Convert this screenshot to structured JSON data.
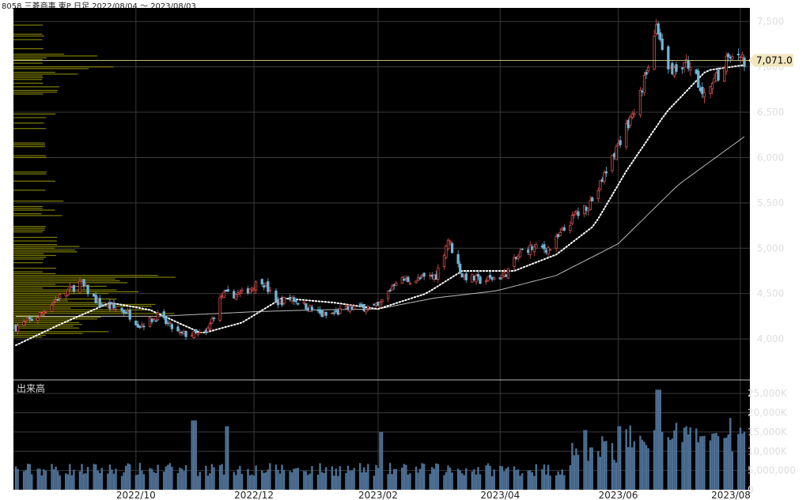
{
  "title": "8058 三菱商事 東P 日足 2022/08/04 ～ 2023/08/03",
  "volume_label": "出来高",
  "colors": {
    "background": "#000000",
    "up_candle": "#e0504f",
    "down_candle": "#6fb7d8",
    "ma_short": "#ffffff",
    "ma_long": "#bbbbbb",
    "volume_bar": "#4d6f93",
    "volume_profile": "#8c8c00",
    "grid": "#3a3a3a",
    "current_price_line": "#bfbf80",
    "price_badge": "#f2e6bf"
  },
  "chart_data": [
    {
      "type": "candlestick",
      "yticks": [
        4000,
        4500,
        5000,
        5500,
        6000,
        6500,
        7000,
        7500
      ],
      "ytick_labels": [
        "4,000",
        "4,500",
        "5,000",
        "5,500",
        "6,000",
        "6,500",
        "7,000",
        "7,500"
      ],
      "ylim": [
        3600,
        7650
      ],
      "current_price": 7071,
      "current_price_label": "7,071.0",
      "price_anchors": [
        [
          "2022-08-04",
          4130
        ],
        [
          "2022-08-15",
          4250
        ],
        [
          "2022-08-25",
          4450
        ],
        [
          "2022-09-05",
          4620
        ],
        [
          "2022-09-15",
          4380
        ],
        [
          "2022-09-28",
          4300
        ],
        [
          "2022-10-05",
          4150
        ],
        [
          "2022-10-14",
          4250
        ],
        [
          "2022-10-25",
          4050
        ],
        [
          "2022-11-07",
          4050
        ],
        [
          "2022-11-15",
          4480
        ],
        [
          "2022-11-25",
          4500
        ],
        [
          "2022-12-05",
          4650
        ],
        [
          "2022-12-12",
          4400
        ],
        [
          "2022-12-20",
          4450
        ],
        [
          "2023-01-05",
          4250
        ],
        [
          "2023-01-20",
          4350
        ],
        [
          "2023-02-01",
          4350
        ],
        [
          "2023-02-10",
          4650
        ],
        [
          "2023-02-20",
          4650
        ],
        [
          "2023-03-02",
          4700
        ],
        [
          "2023-03-08",
          5100
        ],
        [
          "2023-03-15",
          4700
        ],
        [
          "2023-03-25",
          4640
        ],
        [
          "2023-04-05",
          4700
        ],
        [
          "2023-04-15",
          5000
        ],
        [
          "2023-04-28",
          5000
        ],
        [
          "2023-05-10",
          5350
        ],
        [
          "2023-05-20",
          5550
        ],
        [
          "2023-06-01",
          6150
        ],
        [
          "2023-06-10",
          6550
        ],
        [
          "2023-06-16",
          7000
        ],
        [
          "2023-06-20",
          7400
        ],
        [
          "2023-06-26",
          6950
        ],
        [
          "2023-07-05",
          7050
        ],
        [
          "2023-07-15",
          6700
        ],
        [
          "2023-07-25",
          7050
        ],
        [
          "2023-08-03",
          7071
        ]
      ],
      "ma_short_anchors": [
        [
          "2022-08-04",
          3930
        ],
        [
          "2022-08-25",
          4150
        ],
        [
          "2022-09-20",
          4400
        ],
        [
          "2022-10-10",
          4320
        ],
        [
          "2022-11-05",
          4060
        ],
        [
          "2022-11-25",
          4180
        ],
        [
          "2022-12-15",
          4450
        ],
        [
          "2023-01-10",
          4400
        ],
        [
          "2023-02-01",
          4330
        ],
        [
          "2023-02-25",
          4500
        ],
        [
          "2023-03-15",
          4750
        ],
        [
          "2023-04-10",
          4750
        ],
        [
          "2023-05-01",
          4930
        ],
        [
          "2023-05-20",
          5250
        ],
        [
          "2023-06-05",
          5850
        ],
        [
          "2023-06-25",
          6500
        ],
        [
          "2023-07-15",
          6960
        ],
        [
          "2023-08-03",
          7020
        ]
      ],
      "ma_long_anchors": [
        [
          "2022-08-04",
          4250
        ],
        [
          "2022-09-15",
          4250
        ],
        [
          "2022-10-15",
          4250
        ],
        [
          "2022-12-01",
          4300
        ],
        [
          "2023-01-01",
          4320
        ],
        [
          "2023-02-01",
          4330
        ],
        [
          "2023-03-01",
          4450
        ],
        [
          "2023-04-01",
          4530
        ],
        [
          "2023-05-01",
          4700
        ],
        [
          "2023-06-01",
          5050
        ],
        [
          "2023-07-01",
          5700
        ],
        [
          "2023-08-03",
          6230
        ]
      ]
    },
    {
      "type": "bar",
      "name": "出来高",
      "yticks": [
        0,
        5000000,
        10000000,
        15000000,
        20000000,
        25000000
      ],
      "ytick_labels": [
        "0",
        "5,000,000",
        "10,000K",
        "15,000K",
        "20,000K",
        "25,000K"
      ],
      "ylim": [
        0,
        27500000
      ],
      "volume_spikes": [
        [
          "2022-11-01",
          18000000
        ],
        [
          "2022-11-18",
          16500000
        ],
        [
          "2023-02-03",
          15000000
        ],
        [
          "2023-05-15",
          15500000
        ],
        [
          "2023-06-02",
          16500000
        ],
        [
          "2023-06-21",
          26000000
        ]
      ]
    }
  ],
  "xtick_labels": [
    "2022/10",
    "2022/12",
    "2023/02",
    "2023/04",
    "2023/06",
    "2023/08"
  ],
  "xtick_dates": [
    "2022-10-03",
    "2022-12-01",
    "2023-02-01",
    "2023-04-03",
    "2023-06-01",
    "2023-08-01"
  ],
  "date_range": [
    "2022-08-04",
    "2023-08-03"
  ]
}
